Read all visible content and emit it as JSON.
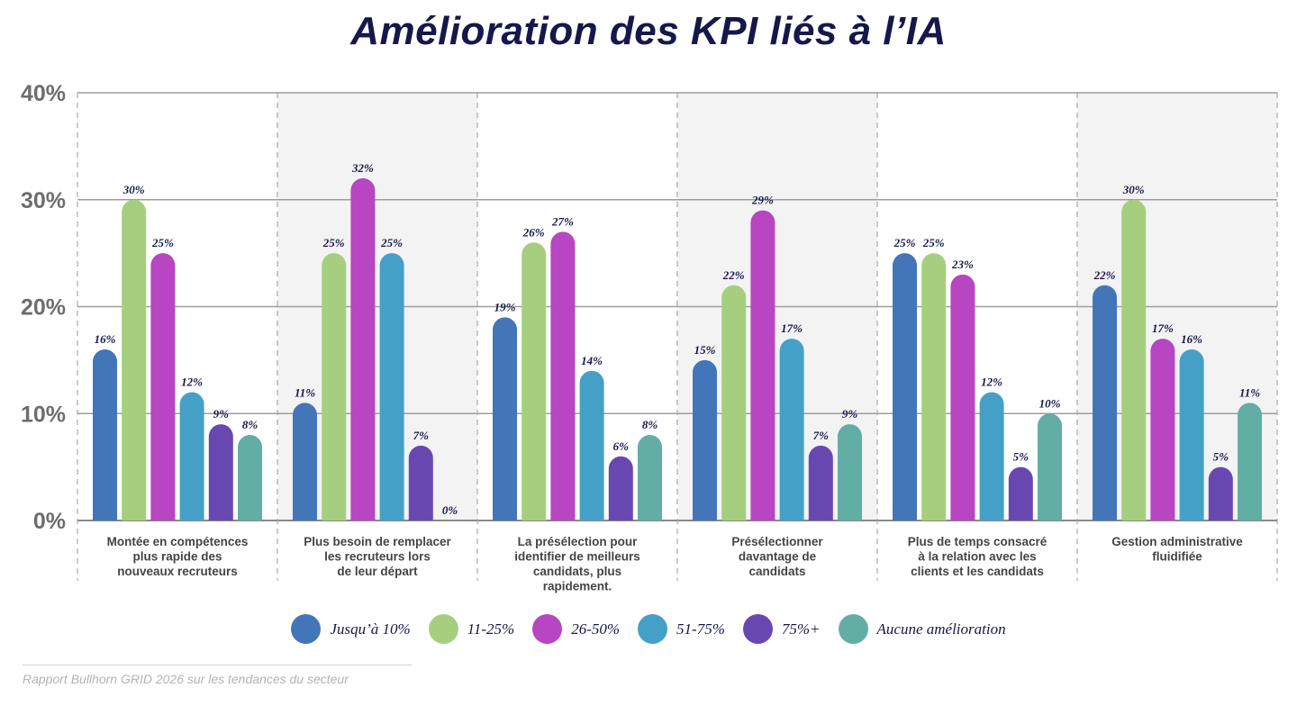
{
  "title": "Amélioration des KPI liés à l’IA",
  "source": "Rapport Bullhorn GRID 2026 sur les tendances du secteur",
  "chart_data": {
    "type": "bar",
    "title": "Amélioration des KPI liés à l’IA",
    "ylim": [
      0,
      40
    ],
    "yticks": [
      "0%",
      "10%",
      "20%",
      "30%",
      "40%"
    ],
    "grid": true,
    "legend_position": "bottom",
    "categories": [
      "Montée en compétences plus rapide des nouveaux recruteurs",
      "Plus besoin de remplacer les recruteurs lors de leur départ",
      "La présélection pour identifier de meilleurs candidats, plus rapidement.",
      "Présélectionner davantage de candidats",
      "Plus de temps consacré à la relation avec les clients et les candidats",
      "Gestion administrative fluidifiée"
    ],
    "category_lines": [
      [
        "Montée en compétences",
        "plus rapide des",
        "nouveaux recruteurs"
      ],
      [
        "Plus besoin de remplacer",
        "les recruteurs lors",
        "de leur départ"
      ],
      [
        "La présélection pour",
        "identifier de meilleurs",
        "candidats, plus",
        "rapidement."
      ],
      [
        "Présélectionner",
        "davantage de",
        "candidats"
      ],
      [
        "Plus de temps consacré",
        "à la relation avec les",
        "clients et les candidats"
      ],
      [
        "Gestion administrative",
        "fluidifiée"
      ]
    ],
    "series": [
      {
        "name": "Jusqu’à 10%",
        "color": "#4376b8",
        "values": [
          16,
          11,
          19,
          15,
          25,
          22
        ],
        "labels": [
          "16%",
          "11%",
          "19%",
          "15%",
          "25%",
          "22%"
        ]
      },
      {
        "name": "11-25%",
        "color": "#a5cf7e",
        "values": [
          30,
          25,
          26,
          22,
          25,
          30
        ],
        "labels": [
          "30%",
          "25%",
          "26%",
          "22%",
          "25%",
          "30%"
        ]
      },
      {
        "name": "26-50%",
        "color": "#b845c2",
        "values": [
          25,
          32,
          27,
          29,
          23,
          17
        ],
        "labels": [
          "25%",
          "32%",
          "27%",
          "29%",
          "23%",
          "17%"
        ]
      },
      {
        "name": "51-75%",
        "color": "#45a0c8",
        "values": [
          12,
          25,
          14,
          17,
          12,
          16
        ],
        "labels": [
          "12%",
          "25%",
          "14%",
          "17%",
          "12%",
          "16%"
        ]
      },
      {
        "name": "75%+",
        "color": "#6848b0",
        "values": [
          9,
          7,
          6,
          7,
          5,
          5
        ],
        "labels": [
          "9%",
          "7%",
          "6%",
          "7%",
          "5%",
          "5%"
        ]
      },
      {
        "name": "Aucune amélioration",
        "color": "#62aea5",
        "values": [
          8,
          0,
          8,
          9,
          10,
          11
        ],
        "labels": [
          "8%",
          "0%",
          "8%",
          "9%",
          "10%",
          "11%"
        ]
      }
    ]
  }
}
